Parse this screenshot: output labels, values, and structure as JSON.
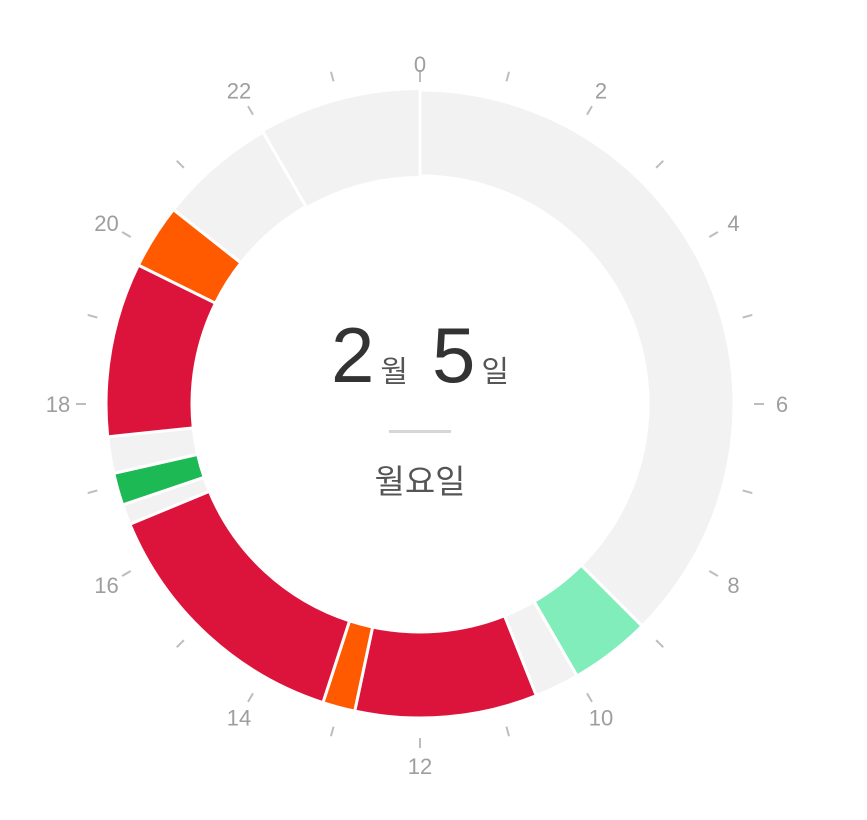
{
  "date": {
    "month": "2",
    "month_unit": "월",
    "day": "5",
    "day_unit": "일",
    "weekday": "월요일"
  },
  "hour_labels": [
    "0",
    "2",
    "4",
    "6",
    "8",
    "10",
    "12",
    "14",
    "16",
    "18",
    "20",
    "22"
  ],
  "colors": {
    "empty": "#f2f2f2",
    "red": "#dc143c",
    "orange": "#ff5a00",
    "green": "#1db954",
    "mint": "#80edbb",
    "tick": "#bdbdbd",
    "label": "#9e9e9e"
  },
  "segments": [
    {
      "start_hour": 0.0,
      "end_hour": 9.0,
      "color": "empty"
    },
    {
      "start_hour": 9.0,
      "end_hour": 10.0,
      "color": "mint"
    },
    {
      "start_hour": 10.0,
      "end_hour": 10.55,
      "color": "empty"
    },
    {
      "start_hour": 10.55,
      "end_hour": 12.8,
      "color": "red"
    },
    {
      "start_hour": 12.8,
      "end_hour": 13.2,
      "color": "orange"
    },
    {
      "start_hour": 13.2,
      "end_hour": 16.5,
      "color": "red"
    },
    {
      "start_hour": 16.5,
      "end_hour": 16.75,
      "color": "empty"
    },
    {
      "start_hour": 16.75,
      "end_hour": 17.15,
      "color": "green"
    },
    {
      "start_hour": 17.15,
      "end_hour": 17.6,
      "color": "empty"
    },
    {
      "start_hour": 17.6,
      "end_hour": 19.75,
      "color": "red"
    },
    {
      "start_hour": 19.75,
      "end_hour": 20.55,
      "color": "orange"
    },
    {
      "start_hour": 20.55,
      "end_hour": 22.0,
      "color": "empty"
    }
  ]
}
